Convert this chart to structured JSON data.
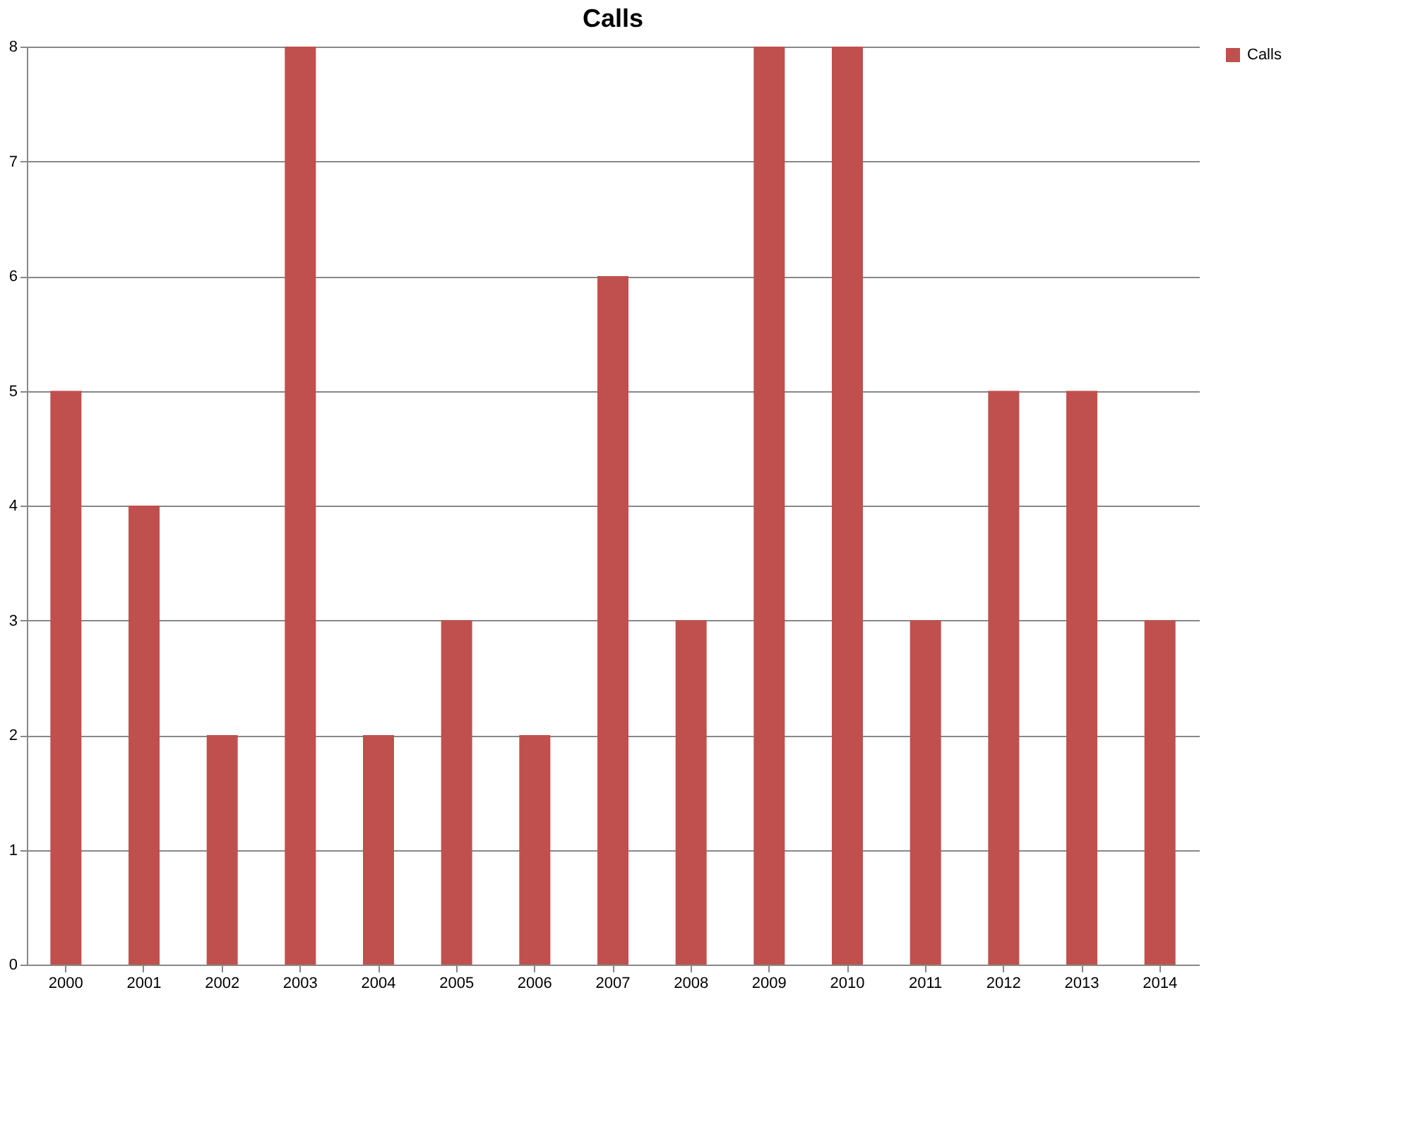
{
  "chart_data": {
    "type": "bar",
    "title": "Calls",
    "categories": [
      "2000",
      "2001",
      "2002",
      "2003",
      "2004",
      "2005",
      "2006",
      "2007",
      "2008",
      "2009",
      "2010",
      "2011",
      "2012",
      "2013",
      "2014"
    ],
    "series": [
      {
        "name": "Calls",
        "color": "#c0504d",
        "values": [
          5,
          4,
          2,
          8,
          2,
          3,
          2,
          6,
          3,
          8,
          8,
          3,
          5,
          5,
          3
        ]
      }
    ],
    "ylim": [
      0,
      8
    ],
    "yticks": [
      0,
      1,
      2,
      3,
      4,
      5,
      6,
      7,
      8
    ],
    "grid": "y",
    "legend": "right"
  }
}
